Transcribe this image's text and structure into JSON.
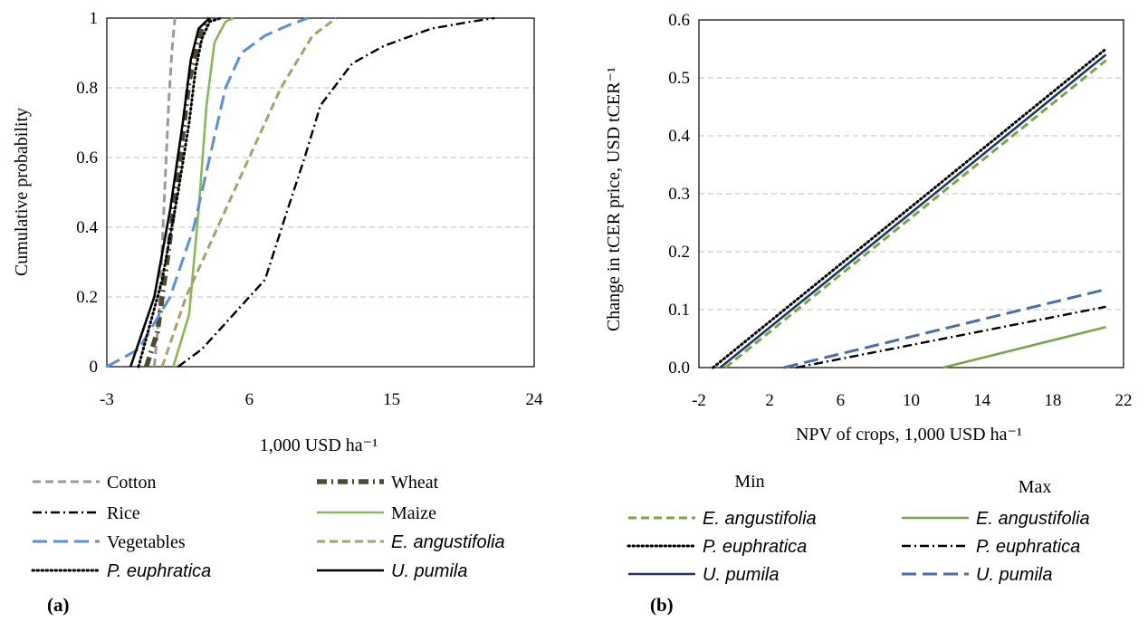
{
  "panel_a_label": "(a)",
  "panel_b_label": "(b)",
  "legend_b_min_header": "Min",
  "legend_b_max_header": "Max",
  "chart_data": [
    {
      "type": "line",
      "panel": "(a)",
      "xlabel": "1,000 USD ha⁻¹",
      "ylabel": "Cumulative probability",
      "xlim": [
        -3,
        24
      ],
      "ylim": [
        0,
        1
      ],
      "xticks": [
        "-3",
        "6",
        "15",
        "24"
      ],
      "yticks": [
        "0",
        "0.2",
        "0.4",
        "0.6",
        "0.8",
        "1"
      ],
      "grid": "horizontal dashed",
      "legend_position": "bottom",
      "series": [
        {
          "name": "Cotton",
          "color": "#9a9a9a",
          "style": "dashed",
          "x": [
            0.0,
            0.3,
            0.5,
            0.7,
            0.9,
            1.1,
            1.3
          ],
          "y": [
            0.0,
            0.15,
            0.35,
            0.55,
            0.75,
            0.9,
            1.0
          ]
        },
        {
          "name": "Wheat",
          "color": "#4f4a32",
          "style": "thick-dash-dot",
          "x": [
            -0.5,
            0.2,
            0.8,
            1.5,
            2.2,
            3.0,
            3.5
          ],
          "y": [
            0.0,
            0.1,
            0.3,
            0.55,
            0.82,
            0.97,
            1.0
          ]
        },
        {
          "name": "Rice",
          "color": "#000000",
          "style": "dash-dot",
          "x": [
            1.5,
            3.0,
            5.0,
            7.0,
            8.2,
            9.5,
            10.5,
            12.5,
            14.5,
            17.5,
            20.0,
            21.5
          ],
          "y": [
            0.0,
            0.05,
            0.15,
            0.25,
            0.42,
            0.6,
            0.75,
            0.87,
            0.92,
            0.97,
            0.99,
            1.0
          ]
        },
        {
          "name": "Maize",
          "color": "#8ab75a",
          "style": "solid",
          "x": [
            1.2,
            2.2,
            2.8,
            3.3,
            3.8,
            4.5,
            5.0
          ],
          "y": [
            0.0,
            0.15,
            0.45,
            0.75,
            0.93,
            0.99,
            1.0
          ]
        },
        {
          "name": "Vegetables",
          "color": "#5b8fd8",
          "style": "long-dash",
          "x": [
            -3.0,
            -1.0,
            1.0,
            2.5,
            3.5,
            4.5,
            5.5,
            7.0,
            8.5,
            9.7
          ],
          "y": [
            0.0,
            0.05,
            0.2,
            0.4,
            0.6,
            0.8,
            0.9,
            0.95,
            0.98,
            1.0
          ]
        },
        {
          "name": "E. angustifolia",
          "color": "#a9a070",
          "style": "dashed",
          "x": [
            0.5,
            2.0,
            4.0,
            6.0,
            8.0,
            10.0,
            11.5
          ],
          "y": [
            0.0,
            0.2,
            0.4,
            0.6,
            0.8,
            0.95,
            1.0
          ]
        },
        {
          "name": "P. euphratica",
          "color": "#000000",
          "style": "dotted",
          "x": [
            -1.0,
            0.5,
            1.5,
            2.2,
            2.6,
            3.0,
            3.5,
            4.2
          ],
          "y": [
            0.0,
            0.25,
            0.5,
            0.7,
            0.85,
            0.94,
            0.99,
            1.0
          ]
        },
        {
          "name": "U. pumila",
          "color": "#000000",
          "style": "solid",
          "x": [
            -1.5,
            0.0,
            1.0,
            1.8,
            2.3,
            2.8,
            3.5
          ],
          "y": [
            0.0,
            0.2,
            0.45,
            0.7,
            0.88,
            0.97,
            1.0
          ]
        }
      ]
    },
    {
      "type": "line",
      "panel": "(b)",
      "xlabel": "NPV of crops, 1,000 USD ha⁻¹",
      "ylabel": "Change in tCER price, USD tCER⁻¹",
      "xlim": [
        -2,
        22
      ],
      "ylim": [
        0,
        0.6
      ],
      "xticks": [
        "-2",
        "2",
        "6",
        "10",
        "14",
        "18",
        "22"
      ],
      "yticks": [
        "0.0",
        "0.1",
        "0.2",
        "0.3",
        "0.4",
        "0.5",
        "0.6"
      ],
      "grid": "horizontal dashed",
      "legend_position": "bottom",
      "legend_groups": [
        "Min",
        "Max"
      ],
      "series": [
        {
          "name": "E. angustifolia",
          "group": "Min",
          "color": "#77a548",
          "style": "dashed",
          "x": [
            -0.5,
            21.0
          ],
          "y": [
            0.0,
            0.53
          ]
        },
        {
          "name": "P. euphratica",
          "group": "Min",
          "color": "#000000",
          "style": "dotted",
          "x": [
            -1.2,
            21.0
          ],
          "y": [
            0.0,
            0.55
          ]
        },
        {
          "name": "U. pumila",
          "group": "Min",
          "color": "#1f3864",
          "style": "solid",
          "x": [
            -0.8,
            21.0
          ],
          "y": [
            0.0,
            0.54
          ]
        },
        {
          "name": "E. angustifolia",
          "group": "Max",
          "color": "#77a548",
          "style": "solid",
          "x": [
            11.8,
            21.0
          ],
          "y": [
            0.0,
            0.07
          ]
        },
        {
          "name": "P. euphratica",
          "group": "Max",
          "color": "#000000",
          "style": "dash-dot",
          "x": [
            3.5,
            21.0
          ],
          "y": [
            0.0,
            0.105
          ]
        },
        {
          "name": "U. pumila",
          "group": "Max",
          "color": "#4a6fa5",
          "style": "long-dash",
          "x": [
            2.8,
            21.0
          ],
          "y": [
            0.0,
            0.135
          ]
        }
      ]
    }
  ]
}
